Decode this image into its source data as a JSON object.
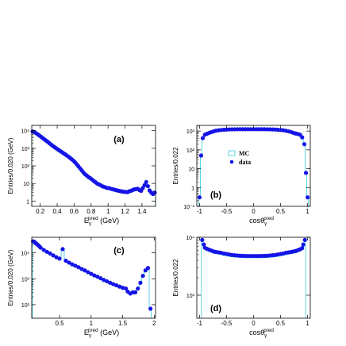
{
  "colors": {
    "data": "#1414e6",
    "mc": "#33ccdd",
    "axis": "#000000",
    "background": "#ffffff"
  },
  "chart_data": [
    {
      "type": "scatter",
      "title": "(a)",
      "xlabel": "E_γ^pred (GeV)",
      "ylabel": "Entries/0.020 (GeV)",
      "xlim": [
        0.1,
        1.56
      ],
      "ylim": [
        0.5,
        20000
      ],
      "y_log": true,
      "xticks": [
        0.2,
        0.4,
        0.6,
        0.8,
        1,
        1.2,
        1.4
      ],
      "xtick_labels": [
        "0.2",
        "0.4",
        "0.6",
        "0.8",
        "1",
        "1.2",
        "1.4"
      ],
      "ytick_labels": [
        "1",
        "10",
        "10²",
        "10³",
        "10⁴"
      ],
      "series": [
        {
          "name": "data",
          "x": [
            0.11,
            0.13,
            0.15,
            0.17,
            0.19,
            0.21,
            0.23,
            0.25,
            0.27,
            0.29,
            0.31,
            0.33,
            0.35,
            0.37,
            0.39,
            0.41,
            0.43,
            0.45,
            0.47,
            0.49,
            0.51,
            0.53,
            0.55,
            0.57,
            0.59,
            0.61,
            0.63,
            0.65,
            0.67,
            0.69,
            0.71,
            0.73,
            0.75,
            0.77,
            0.79,
            0.81,
            0.83,
            0.85,
            0.87,
            0.89,
            0.91,
            0.93,
            0.95,
            0.97,
            0.99,
            1.01,
            1.03,
            1.05,
            1.07,
            1.09,
            1.11,
            1.13,
            1.15,
            1.17,
            1.19,
            1.21,
            1.23,
            1.25,
            1.27,
            1.29,
            1.31,
            1.33,
            1.35,
            1.37,
            1.39,
            1.41,
            1.43,
            1.45,
            1.47,
            1.49,
            1.51,
            1.53,
            1.55
          ],
          "values": [
            9000,
            8500,
            7200,
            6200,
            5300,
            4500,
            3800,
            3200,
            2700,
            2300,
            1900,
            1600,
            1350,
            1150,
            980,
            850,
            730,
            630,
            540,
            470,
            400,
            340,
            290,
            240,
            200,
            160,
            125,
            95,
            72,
            55,
            42,
            33,
            28,
            23,
            20,
            17,
            14,
            12,
            10,
            9,
            8,
            7,
            6.5,
            6,
            5.5,
            5.5,
            5,
            4.8,
            4.5,
            4.2,
            4,
            3.8,
            3.6,
            3.5,
            3.3,
            3.3,
            3.2,
            3.6,
            3.8,
            4.2,
            4.6,
            4.8,
            5,
            4.2,
            3.8,
            5.5,
            8,
            12,
            7,
            4,
            3,
            2.5,
            3
          ]
        }
      ]
    },
    {
      "type": "scatter",
      "title": "(b)",
      "xlabel": "cosθ_γ^pred",
      "ylabel": "Entries/0.022",
      "xlim": [
        -1.05,
        1.05
      ],
      "ylim": [
        0.1,
        2000
      ],
      "y_log": true,
      "xticks": [
        -1,
        -0.5,
        0,
        0.5,
        1
      ],
      "xtick_labels": [
        "-1",
        "-0.5",
        "0",
        "0.5",
        "1"
      ],
      "ytick_labels": [
        "10⁻¹",
        "1",
        "10",
        "10²",
        "10³"
      ],
      "legend": {
        "position": "top-right",
        "entries": [
          "MC",
          "data"
        ]
      },
      "series": [
        {
          "name": "data",
          "x": [
            -1.0,
            -0.97,
            -0.94,
            -0.9,
            -0.86,
            -0.82,
            -0.78,
            -0.74,
            -0.7,
            -0.65,
            -0.6,
            -0.55,
            -0.5,
            -0.45,
            -0.4,
            -0.35,
            -0.3,
            -0.25,
            -0.2,
            -0.15,
            -0.1,
            -0.05,
            0,
            0.05,
            0.1,
            0.15,
            0.2,
            0.25,
            0.3,
            0.35,
            0.4,
            0.45,
            0.5,
            0.55,
            0.6,
            0.65,
            0.7,
            0.74,
            0.78,
            0.82,
            0.86,
            0.9,
            0.94,
            0.97,
            1.0
          ],
          "values": [
            0.3,
            50,
            420,
            640,
            720,
            800,
            880,
            960,
            1040,
            1100,
            1140,
            1170,
            1200,
            1220,
            1230,
            1240,
            1250,
            1250,
            1250,
            1250,
            1250,
            1250,
            1250,
            1250,
            1250,
            1250,
            1250,
            1240,
            1230,
            1220,
            1200,
            1170,
            1140,
            1100,
            1040,
            960,
            880,
            800,
            740,
            700,
            640,
            460,
            200,
            6,
            0.3
          ]
        }
      ]
    },
    {
      "type": "scatter",
      "title": "(c)",
      "xlabel": "E_γ^pred (GeV)",
      "ylabel": "Entries/0.020 (GeV)",
      "xlim": [
        0.06,
        2.02
      ],
      "ylim": [
        30,
        40000
      ],
      "y_log": true,
      "xticks": [
        0.5,
        1,
        1.5,
        2
      ],
      "xtick_labels": [
        "0.5",
        "1",
        "1.5",
        "2"
      ],
      "ytick_labels": [
        "10²",
        "10³",
        "10⁴"
      ],
      "series": [
        {
          "name": "data",
          "x": [
            0.08,
            0.1,
            0.12,
            0.14,
            0.16,
            0.18,
            0.2,
            0.25,
            0.3,
            0.35,
            0.4,
            0.45,
            0.5,
            0.55,
            0.6,
            0.65,
            0.7,
            0.75,
            0.8,
            0.85,
            0.9,
            0.95,
            1.0,
            1.05,
            1.1,
            1.15,
            1.2,
            1.25,
            1.3,
            1.35,
            1.4,
            1.45,
            1.5,
            1.55,
            1.58,
            1.62,
            1.66,
            1.7,
            1.74,
            1.78,
            1.82,
            1.86,
            1.9,
            1.94
          ],
          "values": [
            28000,
            27000,
            24000,
            22000,
            20000,
            18000,
            16000,
            13000,
            11000,
            9500,
            8000,
            6800,
            6000,
            14000,
            5000,
            4200,
            3600,
            3200,
            2800,
            2400,
            2100,
            1800,
            1550,
            1350,
            1200,
            1050,
            900,
            800,
            700,
            620,
            560,
            500,
            450,
            420,
            320,
            270,
            300,
            300,
            420,
            700,
            1300,
            2100,
            2600,
            70
          ]
        }
      ]
    },
    {
      "type": "scatter",
      "title": "(d)",
      "xlabel": "cosθ_γ^pred",
      "ylabel": "Entries/0.022",
      "xlim": [
        -1.05,
        1.05
      ],
      "ylim": [
        400,
        10000
      ],
      "y_log": true,
      "xticks": [
        -1,
        -0.5,
        0,
        0.5,
        1
      ],
      "xtick_labels": [
        "-1",
        "-0.5",
        "0",
        "0.5",
        "1"
      ],
      "ytick_labels": [
        "10³",
        "10⁴"
      ],
      "series": [
        {
          "name": "data",
          "x": [
            -0.95,
            -0.92,
            -0.9,
            -0.86,
            -0.82,
            -0.78,
            -0.74,
            -0.7,
            -0.65,
            -0.6,
            -0.55,
            -0.5,
            -0.45,
            -0.4,
            -0.35,
            -0.3,
            -0.25,
            -0.2,
            -0.15,
            -0.1,
            -0.05,
            0,
            0.05,
            0.1,
            0.15,
            0.2,
            0.25,
            0.3,
            0.35,
            0.4,
            0.45,
            0.5,
            0.55,
            0.6,
            0.65,
            0.7,
            0.74,
            0.78,
            0.82,
            0.86,
            0.9,
            0.92,
            0.95
          ],
          "values": [
            9000,
            7500,
            6600,
            6300,
            6100,
            5900,
            5700,
            5600,
            5500,
            5400,
            5250,
            5150,
            5050,
            4950,
            4900,
            4850,
            4800,
            4780,
            4760,
            4750,
            4750,
            4750,
            4750,
            4750,
            4760,
            4780,
            4800,
            4850,
            4900,
            4950,
            5050,
            5150,
            5250,
            5400,
            5500,
            5600,
            5700,
            5800,
            6000,
            6200,
            6500,
            7500,
            9000
          ]
        }
      ]
    }
  ]
}
